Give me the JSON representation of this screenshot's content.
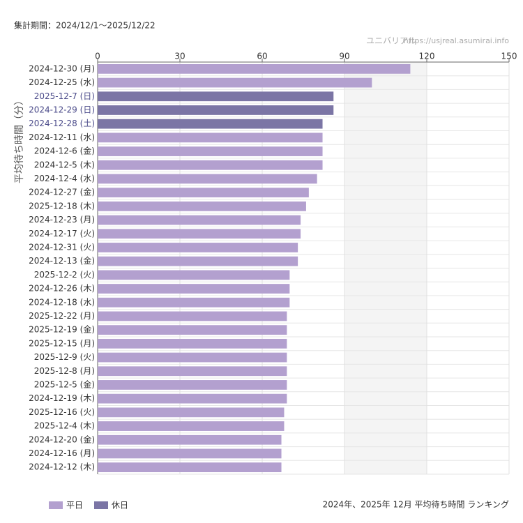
{
  "chart_data": {
    "type": "barh",
    "period": "集計期間：2024/12/1〜2025/12/22",
    "site_name": "ユニバリアル",
    "site_url": "https://usjreal.asumirai.info",
    "y_label": "平均待ち時間（分）",
    "title": "2024年、2025年 12月 平均待ち時間 ランキング",
    "categories": [
      "2024-12-30 (月)",
      "2024-12-25 (水)",
      "2025-12-7 (日)",
      "2024-12-29 (日)",
      "2024-12-28 (土)",
      "2024-12-11 (水)",
      "2024-12-6 (金)",
      "2024-12-5 (木)",
      "2024-12-4 (水)",
      "2024-12-27 (金)",
      "2025-12-18 (木)",
      "2024-12-23 (月)",
      "2024-12-17 (火)",
      "2024-12-31 (火)",
      "2024-12-13 (金)",
      "2025-12-2 (火)",
      "2024-12-26 (木)",
      "2024-12-18 (水)",
      "2025-12-22 (月)",
      "2025-12-19 (金)",
      "2025-12-15 (月)",
      "2025-12-9 (火)",
      "2025-12-8 (月)",
      "2025-12-5 (金)",
      "2024-12-19 (木)",
      "2025-12-16 (火)",
      "2025-12-4 (木)",
      "2024-12-20 (金)",
      "2024-12-16 (月)",
      "2024-12-12 (木)"
    ],
    "series": [
      {
        "name": "平日",
        "color": "#b3a0cf",
        "values": [
          114,
          100,
          null,
          null,
          null,
          82,
          82,
          82,
          80,
          77,
          76,
          74,
          74,
          73,
          73,
          70,
          70,
          70,
          69,
          69,
          69,
          69,
          69,
          69,
          69,
          68,
          68,
          67,
          67,
          67
        ]
      },
      {
        "name": "休日",
        "color": "#7b75a5",
        "label_color": "#4b4b8a",
        "values": [
          null,
          null,
          86,
          86,
          82,
          null,
          null,
          null,
          null,
          null,
          null,
          null,
          null,
          null,
          null,
          null,
          null,
          null,
          null,
          null,
          null,
          null,
          null,
          null,
          null,
          null,
          null,
          null,
          null,
          null
        ]
      }
    ],
    "xlim": [
      0,
      150
    ],
    "xticks": [
      0,
      30,
      60,
      90,
      120,
      150
    ],
    "grid": true
  }
}
